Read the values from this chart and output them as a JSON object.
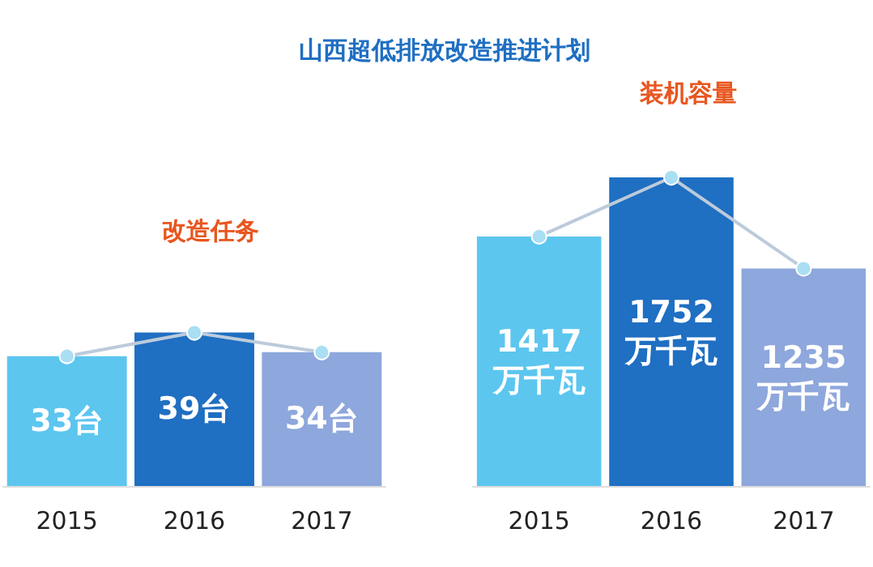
{
  "chart_data": [
    {
      "type": "bar",
      "title": "山西超低排放改造推进计划",
      "subtitle": "改造任务",
      "categories": [
        "2015",
        "2016",
        "2017"
      ],
      "tick_labels": "x",
      "marker": "circle",
      "series": [
        {
          "colors": [
            "#5cc6ef",
            "#1f6fc2",
            "#8ea7dc"
          ],
          "values": [
            33,
            39,
            34
          ],
          "value_labels": [
            "33台",
            "39台",
            "34台"
          ]
        },
        {
          "type": "line",
          "color": "#bccbdb",
          "values": [
            33,
            39,
            34
          ]
        }
      ]
    },
    {
      "type": "bar",
      "subtitle": "装机容量",
      "categories": [
        "2015",
        "2016",
        "2017"
      ],
      "tick_labels": "x",
      "marker": "circle",
      "series": [
        {
          "colors": [
            "#5cc6ef",
            "#1f6fc2",
            "#8ea7dc"
          ],
          "values": [
            1417,
            1752,
            1235
          ],
          "value_labels": [
            "1417\n万千瓦",
            "1752\n万千瓦",
            "1235\n万千瓦"
          ]
        },
        {
          "type": "line",
          "color": "#bccbdb",
          "values": [
            1417,
            1752,
            1235
          ]
        }
      ]
    }
  ]
}
